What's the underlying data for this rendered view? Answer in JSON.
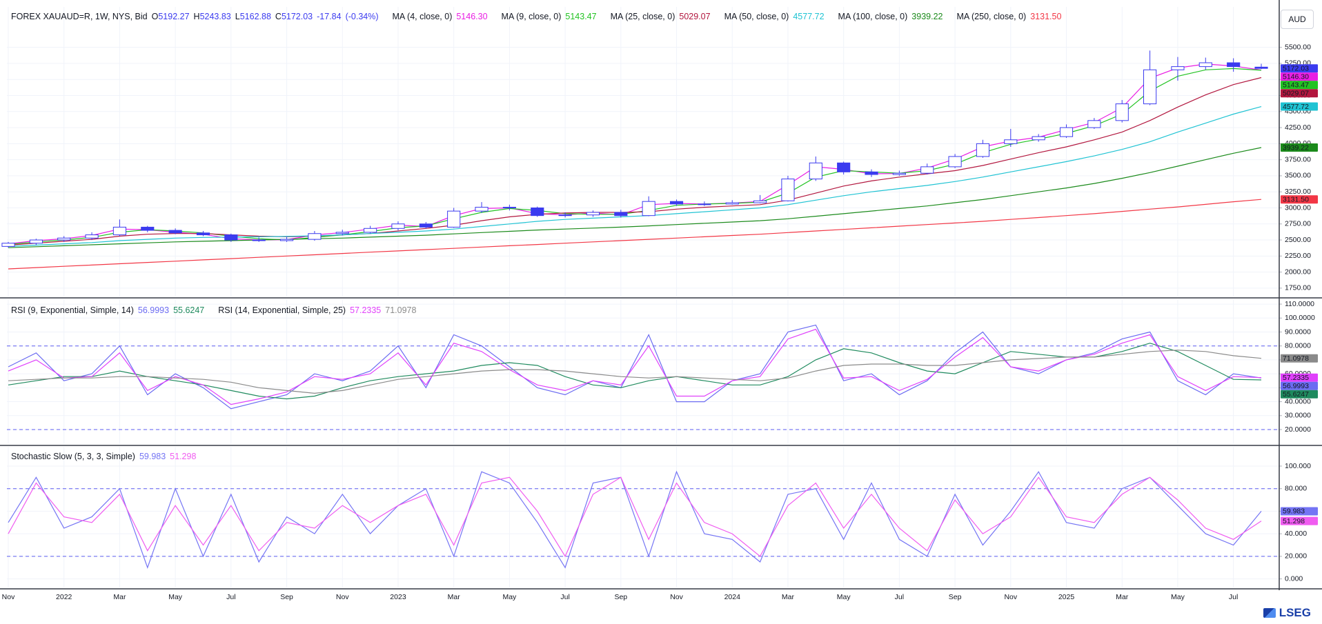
{
  "currency": "AUD",
  "logo": "LSEG",
  "chart_data": [
    {
      "type": "candlestick",
      "title": "FOREX XAUAUD=R, 1W, NYS, Bid",
      "summary": [
        {
          "label": "O",
          "value": 5192.27
        },
        {
          "label": "H",
          "value": 5243.83
        },
        {
          "label": "L",
          "value": 5162.88
        },
        {
          "label": "C",
          "value": 5172.03
        }
      ],
      "change": -17.84,
      "change_label": "(-0.34%)",
      "x": [
        "Nov",
        null,
        "2022",
        null,
        "Mar",
        null,
        "May",
        null,
        "Jul",
        null,
        "Sep",
        null,
        "Nov",
        null,
        "2023",
        null,
        "Mar",
        null,
        "May",
        null,
        "Jul",
        null,
        "Sep",
        null,
        "Nov",
        null,
        "2024",
        null,
        "Mar",
        null,
        "May",
        null,
        "Jul",
        null,
        "Sep",
        null,
        "Nov",
        null,
        "2025",
        null,
        "Mar",
        null,
        "May",
        null,
        "Jul",
        null
      ],
      "open": [
        2400,
        2450,
        2500,
        2530,
        2580,
        2700,
        2650,
        2610,
        2580,
        2500,
        2490,
        2510,
        2600,
        2620,
        2680,
        2750,
        2700,
        2950,
        3010,
        3000,
        2880,
        2890,
        2930,
        2880,
        3100,
        3060,
        3060,
        3080,
        3110,
        3450,
        3700,
        3560,
        3520,
        3540,
        3640,
        3800,
        4000,
        4060,
        4110,
        4250,
        4360,
        4620,
        5150,
        5200,
        5260,
        5192.27
      ],
      "high": [
        2470,
        2520,
        2560,
        2620,
        2820,
        2720,
        2680,
        2640,
        2600,
        2540,
        2550,
        2640,
        2660,
        2720,
        2790,
        2780,
        3000,
        3090,
        3050,
        3020,
        2930,
        2960,
        2970,
        3180,
        3130,
        3100,
        3120,
        3200,
        3500,
        3800,
        3720,
        3600,
        3580,
        3690,
        3840,
        4060,
        4230,
        4150,
        4300,
        4400,
        4680,
        5450,
        5350,
        5340,
        5330,
        5243.83
      ],
      "low": [
        2380,
        2420,
        2470,
        2500,
        2560,
        2620,
        2590,
        2560,
        2470,
        2470,
        2470,
        2490,
        2570,
        2600,
        2650,
        2680,
        2690,
        2920,
        2960,
        2860,
        2850,
        2860,
        2850,
        2870,
        3030,
        3030,
        3050,
        3070,
        3100,
        3420,
        3520,
        3480,
        3500,
        3520,
        3620,
        3780,
        3950,
        4030,
        4090,
        4230,
        4330,
        4600,
        4980,
        5150,
        5120,
        5162.88
      ],
      "close": [
        2450,
        2500,
        2530,
        2580,
        2700,
        2650,
        2610,
        2580,
        2500,
        2490,
        2510,
        2600,
        2620,
        2680,
        2750,
        2700,
        2950,
        3010,
        3000,
        2880,
        2890,
        2930,
        2880,
        3100,
        3060,
        3060,
        3080,
        3110,
        3450,
        3700,
        3560,
        3520,
        3540,
        3640,
        3800,
        4000,
        4060,
        4110,
        4250,
        4360,
        4620,
        5150,
        5200,
        5260,
        5200,
        5172.03
      ],
      "up_color": "#ffffff",
      "down_color": "#3b3bef",
      "outline_color": "#3b3bef",
      "series": [
        {
          "name": "MA (4, close, 0)",
          "color": "#e91ee3",
          "last_label": "5146.30",
          "values": [
            2440,
            2490,
            2520,
            2570,
            2670,
            2660,
            2620,
            2590,
            2520,
            2500,
            2505,
            2580,
            2615,
            2670,
            2730,
            2710,
            2880,
            2990,
            3000,
            2910,
            2890,
            2920,
            2890,
            3050,
            3070,
            3060,
            3075,
            3100,
            3360,
            3640,
            3600,
            3530,
            3535,
            3620,
            3760,
            3950,
            4040,
            4100,
            4220,
            4330,
            4560,
            5020,
            5180,
            5240,
            5210,
            5146.3
          ]
        },
        {
          "name": "MA (9, close, 0)",
          "color": "#22c322",
          "values": [
            2430,
            2470,
            2500,
            2540,
            2620,
            2660,
            2640,
            2610,
            2560,
            2520,
            2500,
            2540,
            2580,
            2630,
            2690,
            2720,
            2830,
            2930,
            2990,
            2960,
            2910,
            2900,
            2900,
            2960,
            3040,
            3060,
            3070,
            3090,
            3230,
            3480,
            3580,
            3560,
            3540,
            3580,
            3680,
            3860,
            3990,
            4070,
            4160,
            4280,
            4460,
            4820,
            5050,
            5150,
            5170,
            5143.47
          ]
        },
        {
          "name": "MA (25, close, 0)",
          "color": "#b2163e",
          "values": [
            2420,
            2450,
            2480,
            2510,
            2560,
            2590,
            2600,
            2600,
            2580,
            2560,
            2550,
            2560,
            2580,
            2600,
            2640,
            2680,
            2730,
            2800,
            2860,
            2900,
            2920,
            2930,
            2930,
            2940,
            2980,
            3010,
            3030,
            3050,
            3120,
            3230,
            3340,
            3420,
            3480,
            3530,
            3580,
            3660,
            3760,
            3860,
            3950,
            4060,
            4180,
            4360,
            4570,
            4760,
            4920,
            5029.07
          ]
        },
        {
          "name": "MA (50, close, 0)",
          "color": "#1fc3d3",
          "values": [
            2400,
            2420,
            2440,
            2460,
            2490,
            2510,
            2530,
            2540,
            2545,
            2550,
            2555,
            2565,
            2580,
            2600,
            2620,
            2640,
            2670,
            2710,
            2750,
            2790,
            2820,
            2840,
            2860,
            2880,
            2910,
            2940,
            2970,
            3000,
            3050,
            3120,
            3190,
            3250,
            3300,
            3350,
            3410,
            3480,
            3560,
            3640,
            3720,
            3810,
            3910,
            4030,
            4180,
            4320,
            4460,
            4577.72
          ]
        },
        {
          "name": "MA (100, close, 0)",
          "color": "#1b8a1b",
          "values": [
            2380,
            2395,
            2410,
            2425,
            2440,
            2455,
            2470,
            2480,
            2490,
            2500,
            2510,
            2520,
            2530,
            2545,
            2560,
            2575,
            2595,
            2615,
            2635,
            2655,
            2670,
            2685,
            2700,
            2720,
            2740,
            2760,
            2780,
            2800,
            2830,
            2870,
            2910,
            2950,
            2990,
            3030,
            3080,
            3130,
            3190,
            3250,
            3310,
            3380,
            3460,
            3550,
            3650,
            3750,
            3850,
            3939.22
          ]
        },
        {
          "name": "MA (250, close, 0)",
          "color": "#f23645",
          "last_label": "3131.50",
          "values": [
            2050,
            2070,
            2090,
            2110,
            2130,
            2150,
            2170,
            2190,
            2210,
            2230,
            2250,
            2270,
            2290,
            2310,
            2330,
            2350,
            2370,
            2390,
            2410,
            2430,
            2450,
            2470,
            2490,
            2510,
            2530,
            2550,
            2570,
            2590,
            2615,
            2640,
            2665,
            2690,
            2715,
            2740,
            2765,
            2790,
            2820,
            2850,
            2880,
            2910,
            2945,
            2980,
            3015,
            3055,
            3095,
            3131.5
          ]
        }
      ],
      "grid": true,
      "ylim": [
        1620,
        6130
      ],
      "yticks": [
        {
          "value": 1750,
          "label": "1750.00"
        },
        {
          "value": 2000,
          "label": "2000.00"
        },
        {
          "value": 2250,
          "label": "2250.00"
        },
        {
          "value": 2500,
          "label": "2500.00"
        },
        {
          "value": 2750,
          "label": "2750.00"
        },
        {
          "value": 3000,
          "label": "3000.00"
        },
        {
          "value": 3250,
          "label": "3250.00"
        },
        {
          "value": 3500,
          "label": "3500.00"
        },
        {
          "value": 3750,
          "label": "3750.00"
        },
        {
          "value": 4000,
          "label": "4000.00"
        },
        {
          "value": 4250,
          "label": "4250.00"
        },
        {
          "value": 4500,
          "label": "4500.00"
        },
        {
          "value": 4750,
          "label": "4750.00"
        },
        {
          "value": 5000,
          "label": "5000.00"
        },
        {
          "value": 5250,
          "label": "5250.00"
        },
        {
          "value": 5500,
          "label": "5500.00"
        }
      ]
    },
    {
      "type": "line",
      "indicators": [
        {
          "name": "RSI (9, Exponential, Simple, 14)",
          "series": [
            {
              "color": "#6b6bf2",
              "values": [
                65,
                75,
                55,
                60,
                80,
                45,
                60,
                50,
                35,
                40,
                45,
                60,
                55,
                62,
                80,
                50,
                88,
                80,
                65,
                50,
                45,
                55,
                50,
                88,
                40,
                40,
                55,
                60,
                90,
                95,
                55,
                60,
                45,
                55,
                75,
                90,
                65,
                60,
                70,
                75,
                85,
                90,
                55,
                45,
                60,
                56.9993
              ]
            },
            {
              "color": "#1f8a5e",
              "values": [
                52,
                55,
                58,
                58,
                62,
                58,
                55,
                52,
                48,
                44,
                42,
                44,
                50,
                55,
                58,
                60,
                62,
                66,
                68,
                66,
                58,
                52,
                50,
                55,
                58,
                55,
                52,
                52,
                58,
                70,
                78,
                75,
                68,
                62,
                60,
                68,
                76,
                74,
                72,
                72,
                76,
                82,
                76,
                66,
                56,
                55.6247
              ]
            }
          ]
        },
        {
          "name": "RSI (14, Exponential, Simple, 25)",
          "series": [
            {
              "color": "#e040fb",
              "values": [
                62,
                70,
                57,
                58,
                75,
                48,
                58,
                52,
                38,
                42,
                47,
                58,
                56,
                60,
                75,
                52,
                82,
                76,
                63,
                52,
                48,
                55,
                52,
                80,
                44,
                44,
                55,
                58,
                85,
                92,
                57,
                58,
                48,
                56,
                72,
                86,
                65,
                62,
                70,
                74,
                82,
                88,
                58,
                48,
                58,
                57.2335
              ]
            },
            {
              "color": "#8a8a8a",
              "values": [
                55,
                56,
                57,
                57,
                58,
                58,
                57,
                56,
                54,
                50,
                48,
                46,
                48,
                52,
                56,
                58,
                60,
                62,
                63,
                63,
                62,
                60,
                58,
                57,
                58,
                57,
                56,
                55,
                57,
                62,
                66,
                67,
                67,
                66,
                66,
                68,
                70,
                71,
                72,
                72,
                74,
                76,
                77,
                76,
                73,
                71.0978
              ]
            }
          ]
        }
      ],
      "hlines": [
        80,
        20
      ],
      "grid": true,
      "ylim": [
        9.6,
        113.5
      ],
      "yticks": [
        {
          "value": 20,
          "label": "20.0000"
        },
        {
          "value": 30,
          "label": "30.0000"
        },
        {
          "value": 40,
          "label": "40.0000"
        },
        {
          "value": 50,
          "label": "50.0000"
        },
        {
          "value": 60,
          "label": "60.0000"
        },
        {
          "value": 70,
          "label": "70.0000"
        },
        {
          "value": 80,
          "label": "80.0000"
        },
        {
          "value": 90,
          "label": "90.0000"
        },
        {
          "value": 100,
          "label": "100.0000"
        },
        {
          "value": 110,
          "label": "110.0000"
        }
      ]
    },
    {
      "type": "line",
      "indicators": [
        {
          "name": "Stochastic Slow (5, 3, 3, Simple)",
          "series": [
            {
              "color": "#7474f4",
              "values": [
                50,
                90,
                45,
                55,
                80,
                10,
                80,
                20,
                75,
                15,
                55,
                40,
                75,
                40,
                65,
                80,
                20,
                95,
                85,
                50,
                10,
                85,
                90,
                20,
                95,
                40,
                35,
                15,
                75,
                80,
                35,
                85,
                35,
                20,
                75,
                30,
                60,
                95,
                50,
                45,
                80,
                90,
                65,
                40,
                30,
                59.983
              ]
            },
            {
              "color": "#f05cf0",
              "values": [
                40,
                85,
                55,
                50,
                75,
                25,
                65,
                30,
                65,
                25,
                50,
                45,
                65,
                50,
                65,
                75,
                30,
                85,
                90,
                60,
                20,
                75,
                90,
                35,
                85,
                50,
                40,
                20,
                65,
                85,
                45,
                75,
                45,
                25,
                70,
                40,
                55,
                90,
                55,
                50,
                75,
                90,
                70,
                45,
                35,
                51.298
              ]
            }
          ]
        }
      ],
      "hlines": [
        80,
        20
      ],
      "grid": true,
      "ylim": [
        -7.6,
        117.1
      ],
      "yticks": [
        {
          "value": 0,
          "label": "0.000"
        },
        {
          "value": 20,
          "label": "20.000"
        },
        {
          "value": 40,
          "label": "40.000"
        },
        {
          "value": 60,
          "label": "60.000"
        },
        {
          "value": 80,
          "label": "80.000"
        },
        {
          "value": 100,
          "label": "100.000"
        }
      ]
    }
  ]
}
